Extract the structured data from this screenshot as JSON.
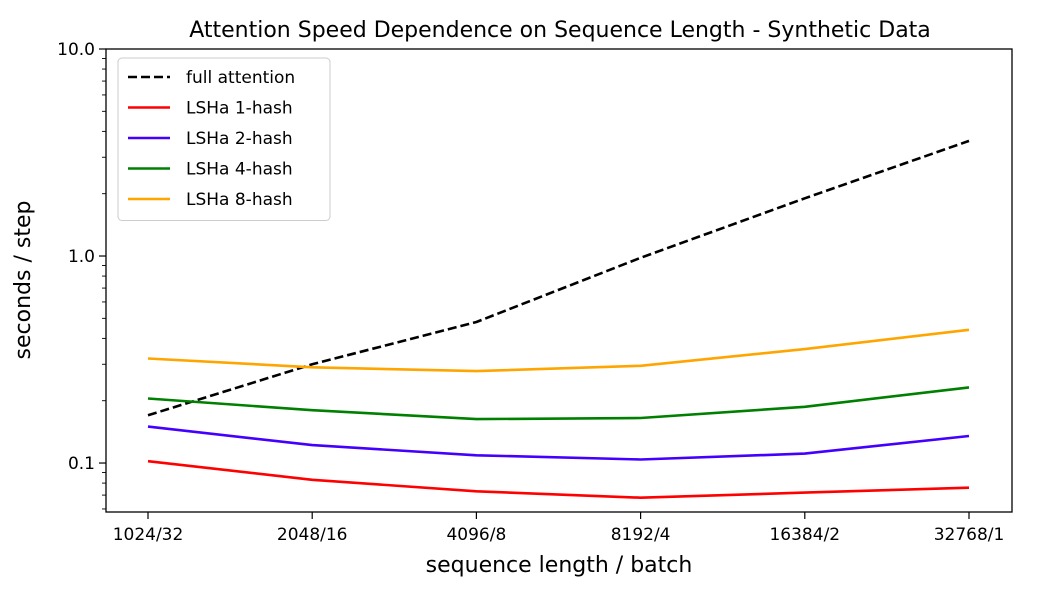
{
  "chart_data": {
    "type": "line",
    "title": "Attention Speed Dependence on Sequence Length - Synthetic Data",
    "xlabel": "sequence length / batch",
    "ylabel": "seconds / step",
    "categories": [
      "1024/32",
      "2048/16",
      "4096/8",
      "8192/4",
      "16384/2",
      "32768/1"
    ],
    "y_scale": "log",
    "ylim": [
      0.058,
      10.0
    ],
    "y_ticks": [
      {
        "value": 0.1,
        "label": "0.1"
      },
      {
        "value": 1.0,
        "label": "1.0"
      },
      {
        "value": 10.0,
        "label": "10.0"
      }
    ],
    "grid": false,
    "legend_position": "top-left",
    "series": [
      {
        "name": "full attention",
        "color": "#000000",
        "dashed": true,
        "values": [
          0.17,
          0.3,
          0.48,
          0.98,
          1.9,
          3.6
        ]
      },
      {
        "name": "LSHa 1-hash",
        "color": "#ff0000",
        "dashed": false,
        "values": [
          0.102,
          0.083,
          0.073,
          0.068,
          0.072,
          0.076
        ]
      },
      {
        "name": "LSHa 2-hash",
        "color": "#4400ff",
        "dashed": false,
        "values": [
          0.15,
          0.122,
          0.109,
          0.104,
          0.111,
          0.135
        ]
      },
      {
        "name": "LSHa 4-hash",
        "color": "#008000",
        "dashed": false,
        "values": [
          0.205,
          0.18,
          0.163,
          0.165,
          0.187,
          0.232
        ]
      },
      {
        "name": "LSHa 8-hash",
        "color": "#ffa500",
        "dashed": false,
        "values": [
          0.32,
          0.29,
          0.278,
          0.295,
          0.355,
          0.44
        ]
      }
    ]
  }
}
